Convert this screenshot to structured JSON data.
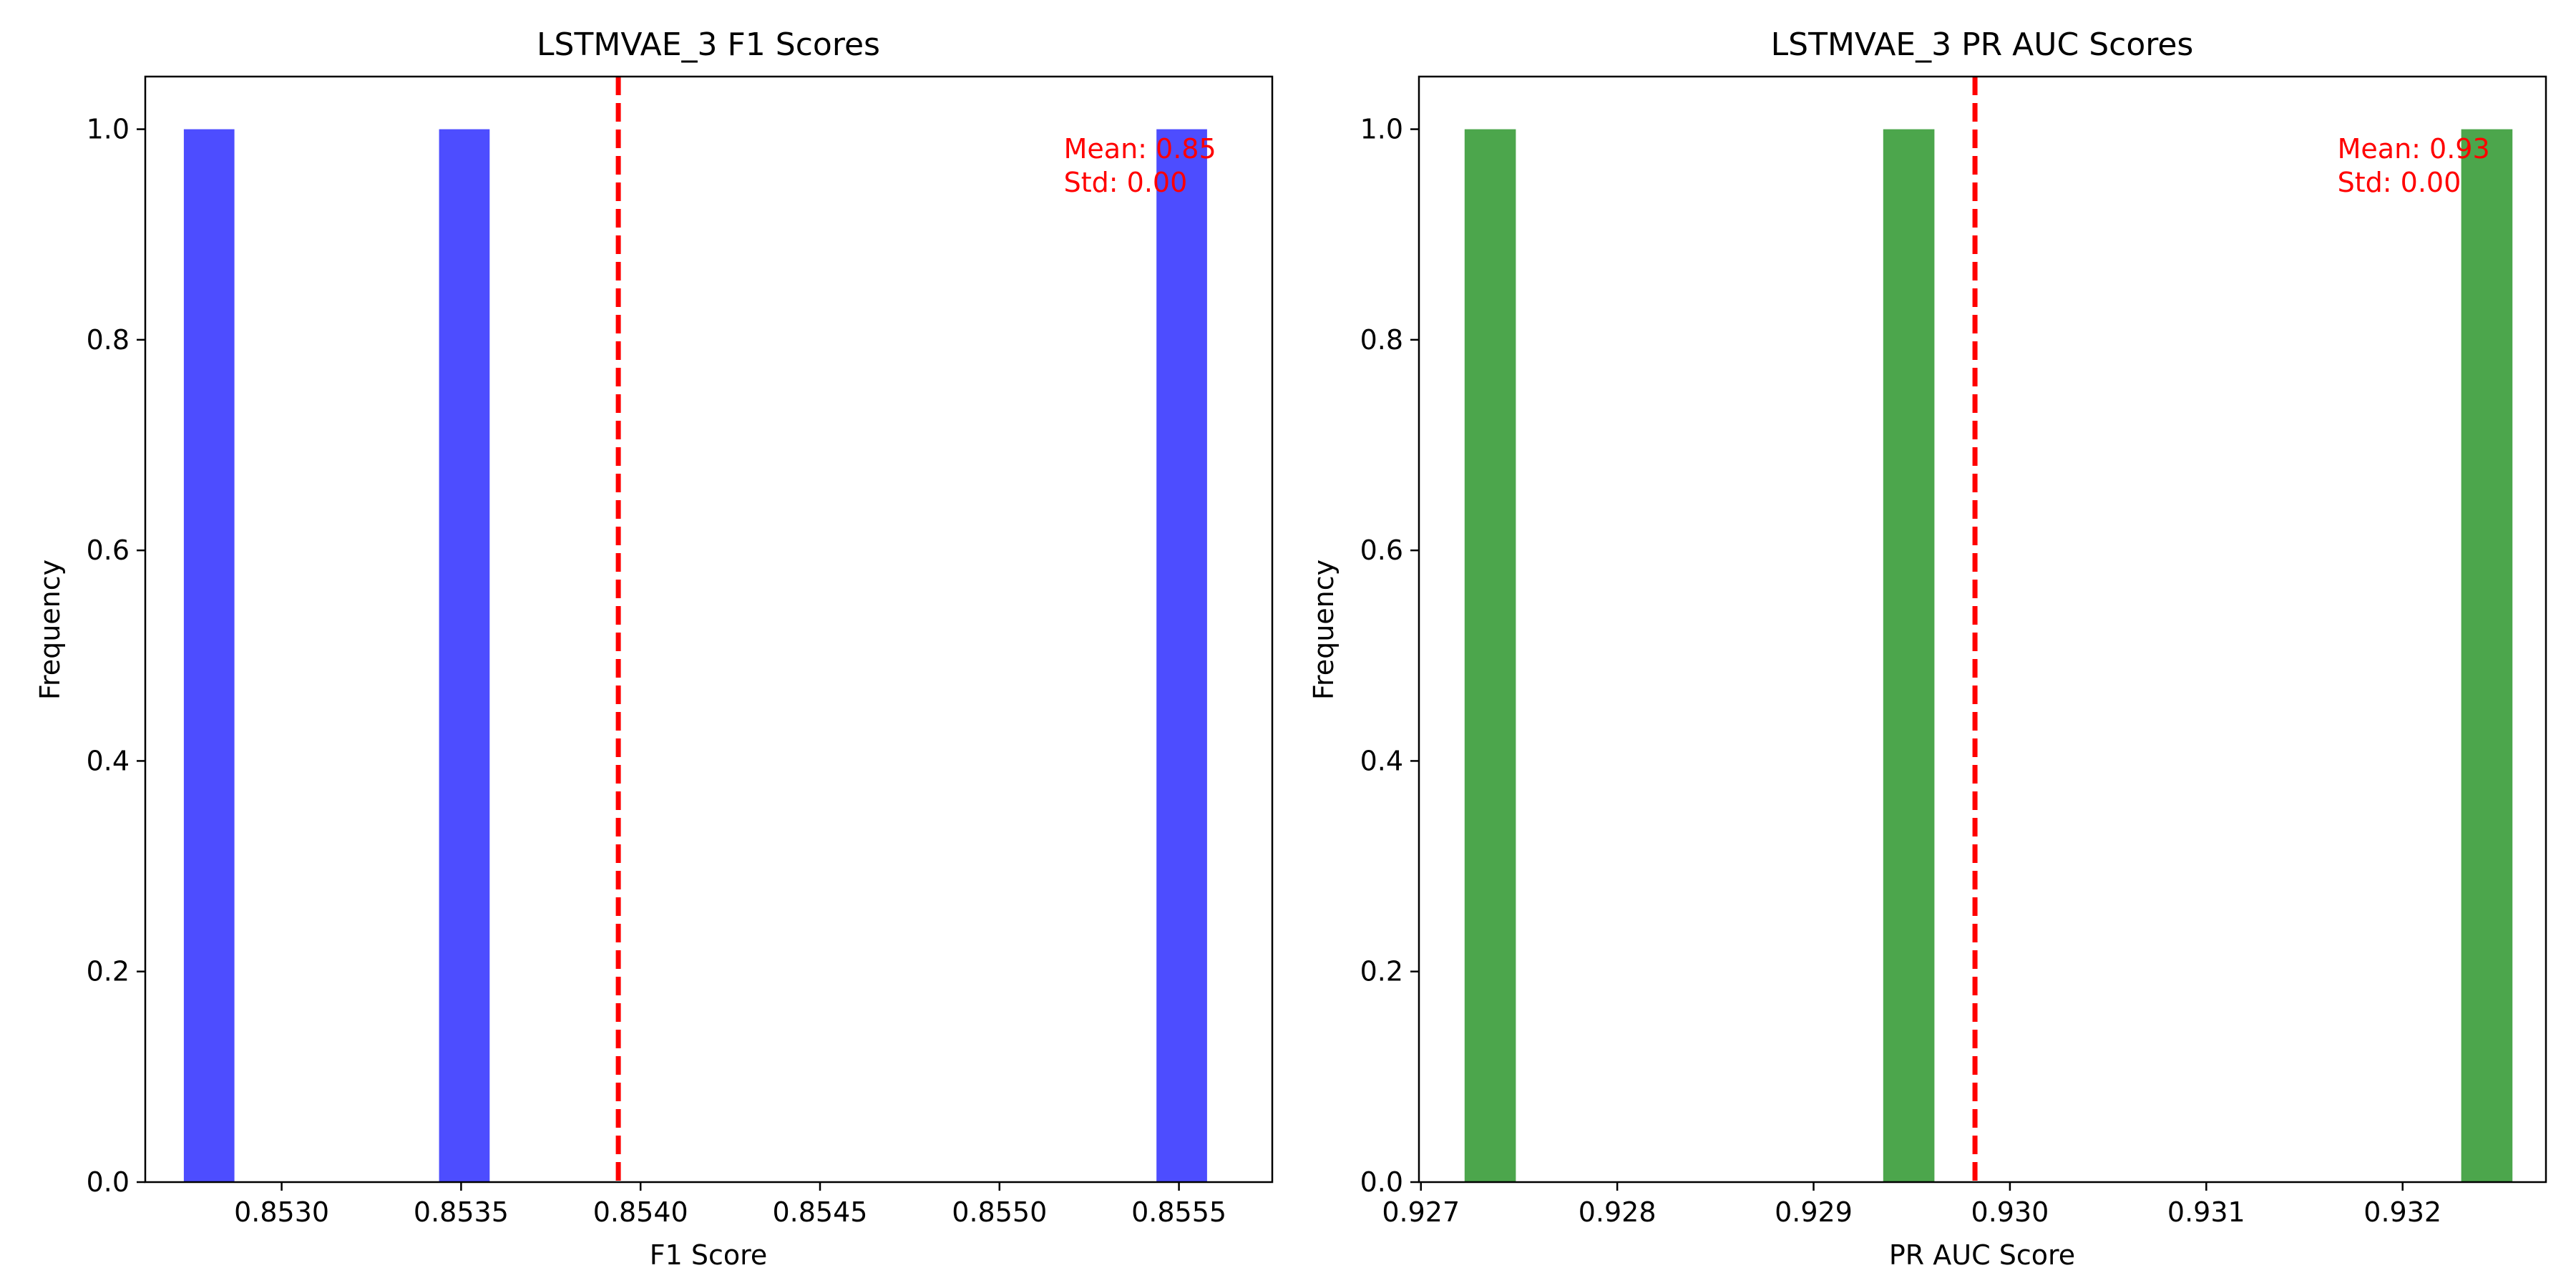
{
  "chart_data": [
    {
      "type": "bar",
      "title": "LSTMVAE_3 F1 Scores",
      "xlabel": "F1 Score",
      "ylabel": "Frequency",
      "xlim": [
        0.85262,
        0.85576
      ],
      "ylim": [
        0,
        1.05
      ],
      "x_ticks": [
        "0.8530",
        "0.8535",
        "0.8540",
        "0.8545",
        "0.8550",
        "0.8555"
      ],
      "y_ticks": [
        "0.0",
        "0.2",
        "0.4",
        "0.6",
        "0.8",
        "1.0"
      ],
      "bar_color": "#4d4dff",
      "bin_width": 0.000141,
      "bars": [
        {
          "x": 0.852798,
          "value": 1
        },
        {
          "x": 0.853509,
          "value": 1
        },
        {
          "x": 0.855508,
          "value": 1
        }
      ],
      "mean_line": 0.853938,
      "mean_line_color": "#ff0000",
      "mean_text": "Mean: 0.85",
      "std_text": "Std: 0.00",
      "grid": false
    },
    {
      "type": "bar",
      "title": "LSTMVAE_3 PR AUC Scores",
      "xlabel": "PR AUC Score",
      "ylabel": "Frequency",
      "xlim": [
        0.92699,
        0.93273
      ],
      "ylim": [
        0,
        1.05
      ],
      "x_ticks": [
        "0.927",
        "0.928",
        "0.929",
        "0.930",
        "0.931",
        "0.932"
      ],
      "y_ticks": [
        "0.0",
        "0.2",
        "0.4",
        "0.6",
        "0.8",
        "1.0"
      ],
      "bar_color": "#4ca64c",
      "bin_width": 0.000261,
      "bars": [
        {
          "x": 0.927353,
          "value": 1
        },
        {
          "x": 0.929485,
          "value": 1
        },
        {
          "x": 0.932429,
          "value": 1
        }
      ],
      "mean_line": 0.929822,
      "mean_line_color": "#ff0000",
      "mean_text": "Mean: 0.93",
      "std_text": "Std: 0.00",
      "grid": false
    }
  ]
}
